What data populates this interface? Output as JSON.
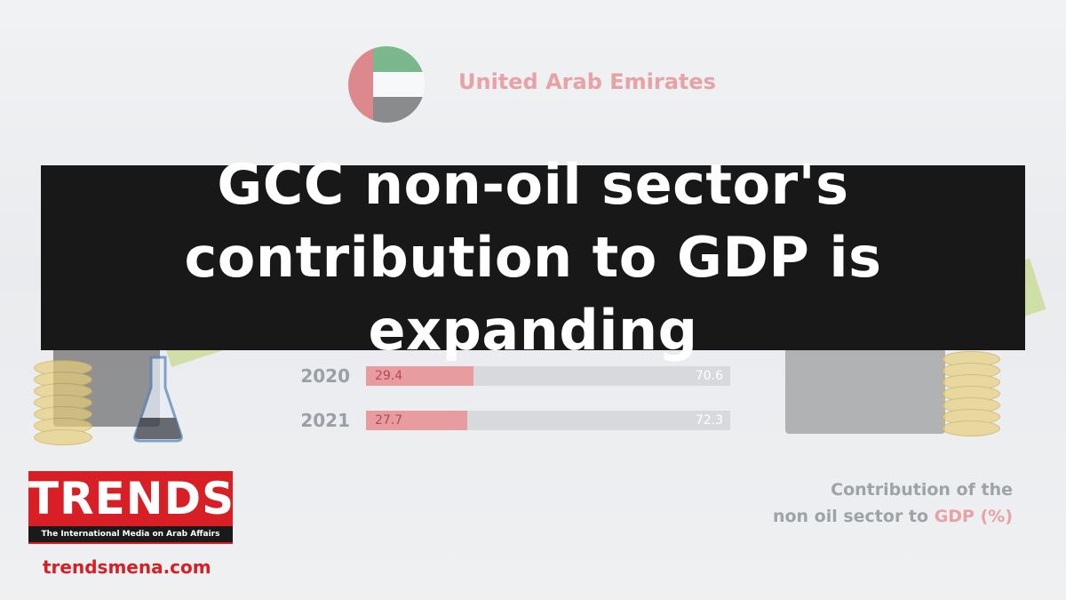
{
  "country": "United Arab Emirates",
  "title": "GCC non-oil sector's contribution to GDP is expanding",
  "logo": {
    "name": "TRENDS",
    "tagline": "The International Media on Arab Affairs",
    "url": "trendsmena.com"
  },
  "caption": {
    "line1": "Contribution of the",
    "line2": "non oil sector to ",
    "highlight": "GDP (%)"
  },
  "colors": {
    "oil": "#e79ca0",
    "non_oil": "#d7d9dc",
    "banner": "#181818",
    "brand": "#d81f26"
  },
  "chart_data": {
    "type": "bar",
    "orientation": "horizontal-stacked",
    "categories": [
      "2020",
      "2021"
    ],
    "series": [
      {
        "values": [
          29.4,
          27.7
        ]
      },
      {
        "values": [
          70.6,
          72.3
        ]
      }
    ],
    "xlim": [
      0,
      100
    ]
  }
}
